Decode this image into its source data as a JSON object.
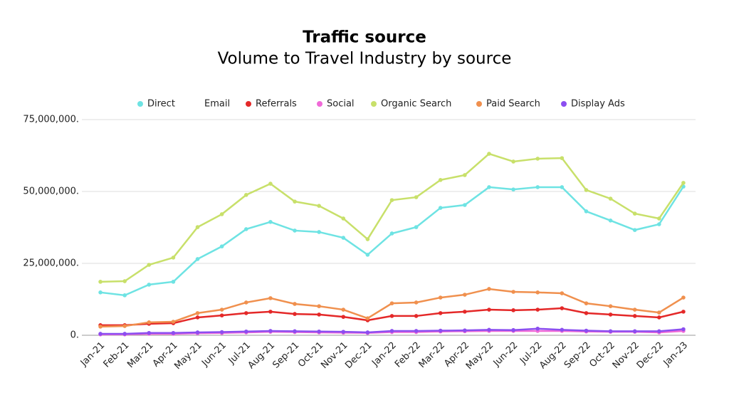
{
  "chart_data": {
    "type": "line",
    "title": "Traffic source",
    "subtitle": "Volume to Travel Industry by source",
    "categories": [
      "Jan-21",
      "Feb-21",
      "Mar-21",
      "Apr-21",
      "May-21",
      "Jun-21",
      "Jul-21",
      "Aug-21",
      "Sep-21",
      "Oct-21",
      "Nov-21",
      "Dec-21",
      "Jan-22",
      "Feb-22",
      "Mar-22",
      "Apr-22",
      "May-22",
      "Jun-22",
      "Jul-22",
      "Aug-22",
      "Sep-22",
      "Oct-22",
      "Nov-22",
      "Dec-22",
      "Jan-23"
    ],
    "ylim": [
      0,
      75000000
    ],
    "yticks": [
      {
        "value": 0,
        "label": "0."
      },
      {
        "value": 25000000,
        "label": "25,000,000."
      },
      {
        "value": 50000000,
        "label": "50,000,000."
      },
      {
        "value": 75000000,
        "label": "75,000,000."
      }
    ],
    "grid": true,
    "legend": "top",
    "series": [
      {
        "name": "Direct",
        "color": "#6ee3e3",
        "values": [
          14900000,
          13900000,
          17600000,
          18600000,
          26500000,
          30900000,
          36900000,
          39400000,
          36400000,
          35900000,
          33900000,
          28000000,
          35400000,
          37600000,
          44300000,
          45300000,
          51500000,
          50700000,
          51500000,
          51500000,
          43100000,
          39900000,
          36600000,
          38600000,
          51700000
        ]
      },
      {
        "name": "Email",
        "color": "#ffffff",
        "values": [
          null,
          null,
          null,
          null,
          null,
          null,
          null,
          null,
          null,
          null,
          null,
          null,
          null,
          null,
          null,
          null,
          null,
          null,
          null,
          null,
          null,
          null,
          null,
          null,
          null
        ]
      },
      {
        "name": "Referrals",
        "color": "#e42828",
        "values": [
          3500000,
          3500000,
          4000000,
          4200000,
          6200000,
          6900000,
          7700000,
          8200000,
          7400000,
          7200000,
          6400000,
          5200000,
          6700000,
          6700000,
          7700000,
          8200000,
          8900000,
          8700000,
          8900000,
          9400000,
          7700000,
          7200000,
          6700000,
          6200000,
          8200000
        ]
      },
      {
        "name": "Social",
        "color": "#f06ad8",
        "values": [
          300000,
          300000,
          500000,
          500000,
          700000,
          800000,
          1000000,
          1200000,
          1100000,
          1000000,
          900000,
          800000,
          1100000,
          1100000,
          1300000,
          1400000,
          1500000,
          1500000,
          1500000,
          1500000,
          1300000,
          1200000,
          1200000,
          1000000,
          1500000
        ]
      },
      {
        "name": "Organic Search",
        "color": "#c8e06a",
        "values": [
          18600000,
          18800000,
          24500000,
          27000000,
          37600000,
          42100000,
          48800000,
          52700000,
          46500000,
          45000000,
          40600000,
          33400000,
          47000000,
          48000000,
          54000000,
          55700000,
          63100000,
          60400000,
          61400000,
          61600000,
          50500000,
          47500000,
          42300000,
          40600000,
          53000000
        ]
      },
      {
        "name": "Paid Search",
        "color": "#f0904e",
        "values": [
          3000000,
          3200000,
          4500000,
          4700000,
          7700000,
          8900000,
          11400000,
          12900000,
          10900000,
          10100000,
          8900000,
          5900000,
          11100000,
          11400000,
          13100000,
          14100000,
          16100000,
          15100000,
          14900000,
          14600000,
          11100000,
          10100000,
          8900000,
          7900000,
          13100000
        ]
      },
      {
        "name": "Display Ads",
        "color": "#8b4ef0",
        "values": [
          500000,
          500000,
          800000,
          800000,
          1000000,
          1100000,
          1300000,
          1500000,
          1400000,
          1300000,
          1200000,
          1000000,
          1500000,
          1500000,
          1600000,
          1700000,
          1900000,
          1800000,
          2300000,
          1900000,
          1600000,
          1400000,
          1400000,
          1400000,
          2100000
        ]
      }
    ]
  }
}
